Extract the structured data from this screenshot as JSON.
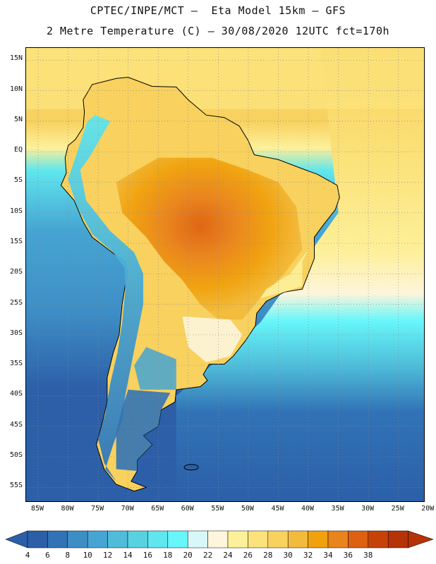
{
  "header": {
    "line1": "CPTEC/INPE/MCT –  Eta Model 15km – GFS",
    "line2": "2 Metre Temperature (C) – 30/08/2020 12UTC fct=170h"
  },
  "map": {
    "lat_labels": [
      "15N",
      "10N",
      "5N",
      "EQ",
      "5S",
      "10S",
      "15S",
      "20S",
      "25S",
      "30S",
      "35S",
      "40S",
      "45S",
      "50S",
      "55S"
    ],
    "lon_labels": [
      "85W",
      "80W",
      "75W",
      "70W",
      "65W",
      "60W",
      "55W",
      "50W",
      "45W",
      "40W",
      "35W",
      "30W",
      "25W",
      "20W"
    ],
    "lat_range": [
      17,
      -57.5
    ],
    "lon_range": [
      -87,
      -20.5
    ]
  },
  "legend": {
    "ticks": [
      "4",
      "6",
      "8",
      "10",
      "12",
      "14",
      "16",
      "18",
      "20",
      "22",
      "24",
      "26",
      "28",
      "30",
      "32",
      "34",
      "36",
      "38"
    ],
    "colors": [
      "#2c5fa8",
      "#3173b6",
      "#3e8ec6",
      "#46a5d2",
      "#4fbcd9",
      "#58d2e0",
      "#5fe6ee",
      "#67f6fa",
      "#d8f7f9",
      "#fdf5dc",
      "#fdf09a",
      "#fbe27a",
      "#f8d15e",
      "#f2bb3d",
      "#f0a10d",
      "#e9831b",
      "#de6011",
      "#c74208",
      "#b63207"
    ],
    "arrow_left_color": "#2c5fa8",
    "arrow_right_color": "#b63207"
  },
  "colors": {
    "ocean_cold": "#2c5fa8",
    "ocean_mid": "#46a5d2",
    "ocean_cyan": "#5fe6ee",
    "tropical_warm": "#f8d15e",
    "hot": "#e9831b"
  }
}
